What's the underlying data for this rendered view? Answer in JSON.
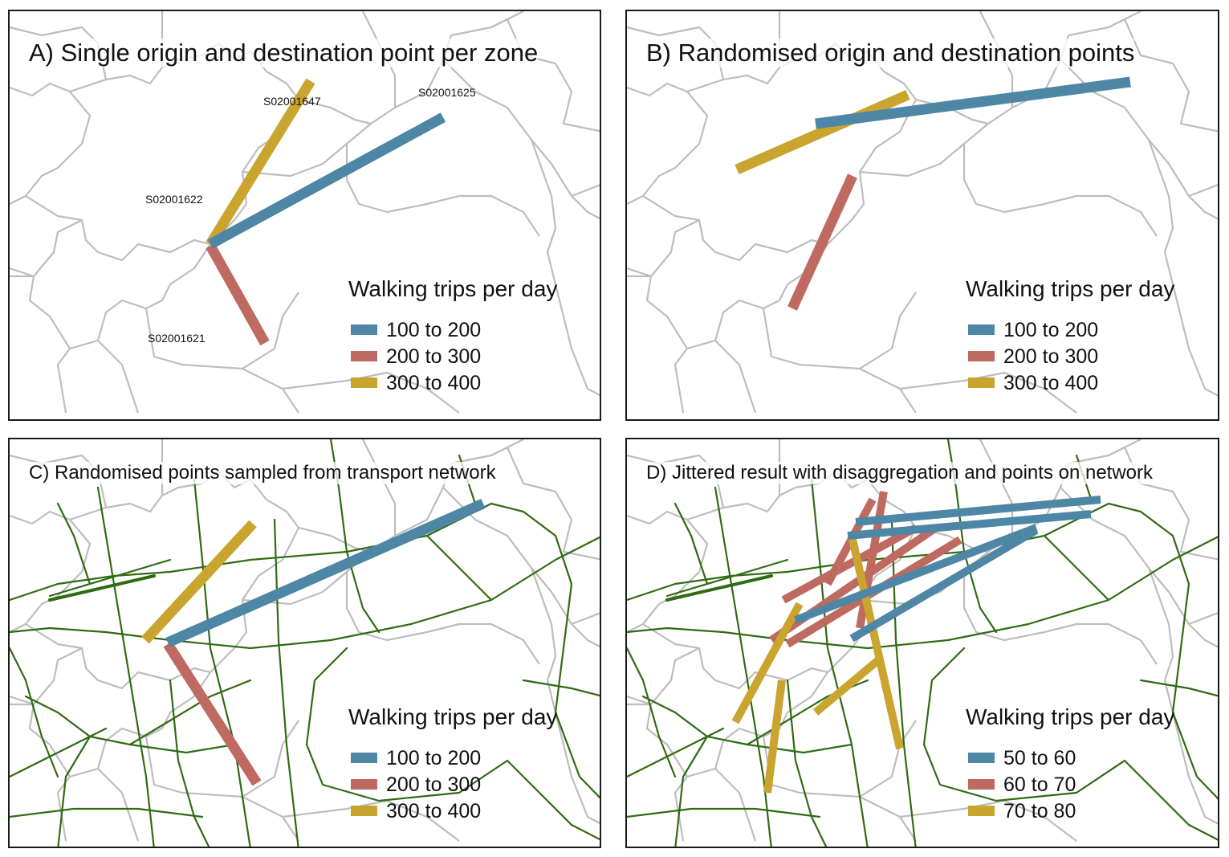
{
  "figure": {
    "colors": {
      "blue": "#4e86a6",
      "red": "#bf6a60",
      "gold": "#c9a42e",
      "zone_boundary": "#bdbdbd",
      "network": "#2f6b12"
    },
    "panels": {
      "a": {
        "title": "A) Single origin and destination point per zone",
        "zone_labels": [
          "S02001647",
          "S02001625",
          "S02001622",
          "S02001621"
        ],
        "legend": {
          "title": "Walking trips per day",
          "items": [
            {
              "label": "100 to 200",
              "color": "#4e86a6"
            },
            {
              "label": "200 to 300",
              "color": "#bf6a60"
            },
            {
              "label": "300 to 400",
              "color": "#c9a42e"
            }
          ]
        }
      },
      "b": {
        "title": "B) Randomised origin and destination points",
        "legend": {
          "title": "Walking trips per day",
          "items": [
            {
              "label": "100 to 200",
              "color": "#4e86a6"
            },
            {
              "label": "200 to 300",
              "color": "#bf6a60"
            },
            {
              "label": "300 to 400",
              "color": "#c9a42e"
            }
          ]
        }
      },
      "c": {
        "title": "C) Randomised points sampled from transport network",
        "legend": {
          "title": "Walking trips per day",
          "items": [
            {
              "label": "100 to 200",
              "color": "#4e86a6"
            },
            {
              "label": "200 to 300",
              "color": "#bf6a60"
            },
            {
              "label": "300 to 400",
              "color": "#c9a42e"
            }
          ]
        }
      },
      "d": {
        "title": "D) Jittered result with disaggregation and points on network",
        "legend": {
          "title": "Walking trips per day",
          "items": [
            {
              "label": "50 to 60",
              "color": "#4e86a6"
            },
            {
              "label": "60 to 70",
              "color": "#bf6a60"
            },
            {
              "label": "70 to 80",
              "color": "#c9a42e"
            }
          ]
        }
      }
    }
  }
}
